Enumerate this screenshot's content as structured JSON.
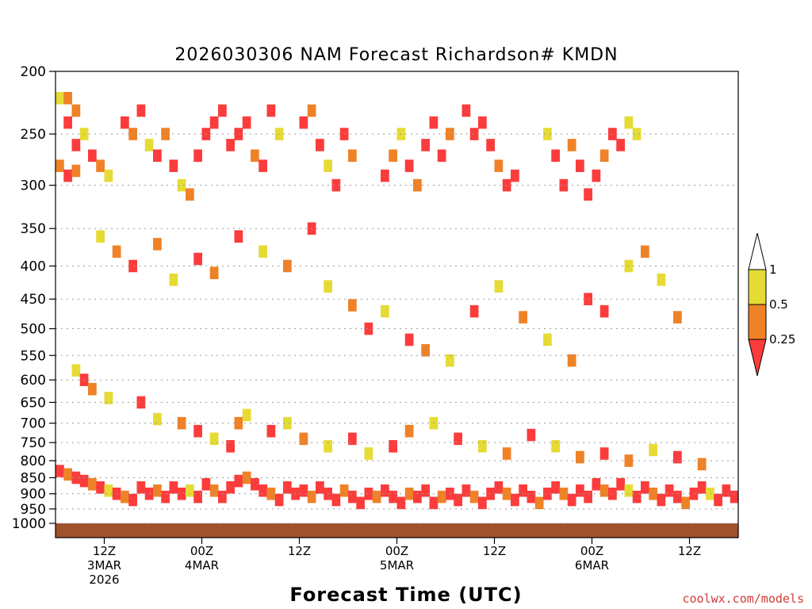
{
  "chart_data": {
    "type": "heatmap",
    "title": "2026030306 NAM Forecast Richardson# KMDN",
    "xlabel": "Forecast Time (UTC)",
    "ylabel": "",
    "y_scale": "log-pressure",
    "ylim": [
      1000,
      200
    ],
    "y_ticks": [
      "200",
      "250",
      "300",
      "350",
      "400",
      "450",
      "500",
      "550",
      "600",
      "650",
      "700",
      "750",
      "800",
      "850",
      "900",
      "950",
      "1000"
    ],
    "x_ticks": [
      {
        "label": "12Z",
        "sub1": "3MAR",
        "sub2": "2026",
        "hour": 6
      },
      {
        "label": "00Z",
        "sub1": "4MAR",
        "sub2": "",
        "hour": 18
      },
      {
        "label": "12Z",
        "sub1": "",
        "sub2": "",
        "hour": 30
      },
      {
        "label": "00Z",
        "sub1": "5MAR",
        "sub2": "",
        "hour": 42
      },
      {
        "label": "12Z",
        "sub1": "",
        "sub2": "",
        "hour": 54
      },
      {
        "label": "00Z",
        "sub1": "6MAR",
        "sub2": "",
        "hour": 66
      },
      {
        "label": "12Z",
        "sub1": "",
        "sub2": "",
        "hour": 78
      }
    ],
    "xlim_hours": [
      0,
      84
    ],
    "legend": {
      "labels": [
        "1",
        "0.5",
        "0.25"
      ],
      "bins": [
        {
          "range": "0.5-1",
          "color": "#e5db34"
        },
        {
          "range": "0.25-0.5",
          "color": "#ef8227"
        },
        {
          "range": "<0.25",
          "color": "#fb3c3c"
        }
      ],
      "above_color": "#ffffff",
      "below_color": "#fb3c3c",
      "placement": "right"
    },
    "ground_color": "#a0522d",
    "cells": [
      [
        0,
        220,
        1
      ],
      [
        1,
        220,
        2
      ],
      [
        1,
        240,
        3
      ],
      [
        2,
        230,
        2
      ],
      [
        2,
        260,
        3
      ],
      [
        3,
        250,
        1
      ],
      [
        4,
        270,
        3
      ],
      [
        5,
        280,
        2
      ],
      [
        6,
        290,
        1
      ],
      [
        0,
        280,
        2
      ],
      [
        1,
        290,
        3
      ],
      [
        2,
        285,
        2
      ],
      [
        8,
        240,
        3
      ],
      [
        9,
        250,
        2
      ],
      [
        10,
        230,
        3
      ],
      [
        11,
        260,
        1
      ],
      [
        12,
        270,
        3
      ],
      [
        13,
        250,
        2
      ],
      [
        14,
        280,
        3
      ],
      [
        15,
        300,
        1
      ],
      [
        16,
        310,
        2
      ],
      [
        17,
        270,
        3
      ],
      [
        18,
        250,
        3
      ],
      [
        19,
        240,
        3
      ],
      [
        20,
        230,
        3
      ],
      [
        21,
        260,
        3
      ],
      [
        22,
        250,
        3
      ],
      [
        23,
        240,
        3
      ],
      [
        24,
        270,
        2
      ],
      [
        25,
        280,
        3
      ],
      [
        26,
        230,
        3
      ],
      [
        27,
        250,
        1
      ],
      [
        30,
        240,
        3
      ],
      [
        31,
        230,
        2
      ],
      [
        32,
        260,
        3
      ],
      [
        33,
        280,
        1
      ],
      [
        34,
        300,
        3
      ],
      [
        35,
        250,
        3
      ],
      [
        36,
        270,
        2
      ],
      [
        40,
        290,
        3
      ],
      [
        41,
        270,
        2
      ],
      [
        42,
        250,
        1
      ],
      [
        43,
        280,
        3
      ],
      [
        44,
        300,
        2
      ],
      [
        45,
        260,
        3
      ],
      [
        46,
        240,
        3
      ],
      [
        47,
        270,
        3
      ],
      [
        48,
        250,
        2
      ],
      [
        50,
        230,
        3
      ],
      [
        51,
        250,
        3
      ],
      [
        52,
        240,
        3
      ],
      [
        53,
        260,
        3
      ],
      [
        54,
        280,
        2
      ],
      [
        55,
        300,
        3
      ],
      [
        56,
        290,
        3
      ],
      [
        60,
        250,
        1
      ],
      [
        61,
        270,
        3
      ],
      [
        62,
        300,
        3
      ],
      [
        63,
        260,
        2
      ],
      [
        64,
        280,
        3
      ],
      [
        65,
        310,
        3
      ],
      [
        66,
        290,
        3
      ],
      [
        67,
        270,
        2
      ],
      [
        68,
        250,
        3
      ],
      [
        69,
        260,
        3
      ],
      [
        70,
        240,
        1
      ],
      [
        71,
        250,
        1
      ],
      [
        5,
        360,
        1
      ],
      [
        7,
        380,
        2
      ],
      [
        9,
        400,
        3
      ],
      [
        12,
        370,
        2
      ],
      [
        14,
        420,
        1
      ],
      [
        17,
        390,
        3
      ],
      [
        19,
        410,
        2
      ],
      [
        22,
        360,
        3
      ],
      [
        25,
        380,
        1
      ],
      [
        28,
        400,
        2
      ],
      [
        31,
        350,
        3
      ],
      [
        33,
        430,
        1
      ],
      [
        36,
        460,
        2
      ],
      [
        38,
        500,
        3
      ],
      [
        40,
        470,
        1
      ],
      [
        43,
        520,
        3
      ],
      [
        45,
        540,
        2
      ],
      [
        48,
        560,
        1
      ],
      [
        51,
        470,
        3
      ],
      [
        54,
        430,
        1
      ],
      [
        57,
        480,
        2
      ],
      [
        60,
        520,
        1
      ],
      [
        63,
        560,
        2
      ],
      [
        65,
        450,
        3
      ],
      [
        67,
        470,
        3
      ],
      [
        70,
        400,
        1
      ],
      [
        72,
        380,
        2
      ],
      [
        74,
        420,
        1
      ],
      [
        76,
        480,
        2
      ],
      [
        2,
        580,
        1
      ],
      [
        3,
        600,
        3
      ],
      [
        4,
        620,
        2
      ],
      [
        6,
        640,
        1
      ],
      [
        10,
        650,
        3
      ],
      [
        12,
        690,
        1
      ],
      [
        15,
        700,
        2
      ],
      [
        17,
        720,
        3
      ],
      [
        19,
        740,
        1
      ],
      [
        21,
        760,
        3
      ],
      [
        22,
        700,
        2
      ],
      [
        23,
        680,
        1
      ],
      [
        26,
        720,
        3
      ],
      [
        28,
        700,
        1
      ],
      [
        30,
        740,
        2
      ],
      [
        33,
        760,
        1
      ],
      [
        36,
        740,
        3
      ],
      [
        38,
        780,
        1
      ],
      [
        41,
        760,
        3
      ],
      [
        43,
        720,
        2
      ],
      [
        46,
        700,
        1
      ],
      [
        49,
        740,
        3
      ],
      [
        52,
        760,
        1
      ],
      [
        55,
        780,
        2
      ],
      [
        58,
        730,
        3
      ],
      [
        61,
        760,
        1
      ],
      [
        64,
        790,
        2
      ],
      [
        67,
        780,
        3
      ],
      [
        70,
        800,
        2
      ],
      [
        73,
        770,
        1
      ],
      [
        76,
        790,
        3
      ],
      [
        79,
        810,
        2
      ],
      [
        0,
        830,
        3
      ],
      [
        1,
        840,
        2
      ],
      [
        2,
        850,
        3
      ],
      [
        3,
        860,
        3
      ],
      [
        4,
        870,
        2
      ],
      [
        5,
        880,
        3
      ],
      [
        6,
        890,
        1
      ],
      [
        7,
        900,
        3
      ],
      [
        8,
        910,
        2
      ],
      [
        9,
        920,
        3
      ],
      [
        10,
        880,
        3
      ],
      [
        11,
        900,
        3
      ],
      [
        12,
        890,
        2
      ],
      [
        13,
        910,
        3
      ],
      [
        14,
        880,
        3
      ],
      [
        15,
        900,
        3
      ],
      [
        16,
        890,
        1
      ],
      [
        17,
        910,
        3
      ],
      [
        18,
        870,
        3
      ],
      [
        19,
        890,
        2
      ],
      [
        20,
        910,
        3
      ],
      [
        21,
        880,
        3
      ],
      [
        22,
        860,
        3
      ],
      [
        23,
        850,
        2
      ],
      [
        24,
        870,
        3
      ],
      [
        25,
        890,
        3
      ],
      [
        26,
        900,
        2
      ],
      [
        27,
        920,
        3
      ],
      [
        28,
        880,
        3
      ],
      [
        29,
        900,
        3
      ],
      [
        30,
        890,
        3
      ],
      [
        31,
        910,
        2
      ],
      [
        32,
        880,
        3
      ],
      [
        33,
        900,
        3
      ],
      [
        34,
        920,
        3
      ],
      [
        35,
        890,
        2
      ],
      [
        36,
        910,
        3
      ],
      [
        37,
        930,
        3
      ],
      [
        38,
        900,
        3
      ],
      [
        39,
        910,
        2
      ],
      [
        40,
        890,
        3
      ],
      [
        41,
        910,
        3
      ],
      [
        42,
        930,
        3
      ],
      [
        43,
        900,
        2
      ],
      [
        44,
        910,
        3
      ],
      [
        45,
        890,
        3
      ],
      [
        46,
        930,
        3
      ],
      [
        47,
        910,
        2
      ],
      [
        48,
        900,
        3
      ],
      [
        49,
        920,
        3
      ],
      [
        50,
        890,
        3
      ],
      [
        51,
        910,
        2
      ],
      [
        52,
        930,
        3
      ],
      [
        53,
        900,
        3
      ],
      [
        54,
        880,
        3
      ],
      [
        55,
        900,
        2
      ],
      [
        56,
        920,
        3
      ],
      [
        57,
        890,
        3
      ],
      [
        58,
        910,
        3
      ],
      [
        59,
        930,
        2
      ],
      [
        60,
        900,
        3
      ],
      [
        61,
        880,
        3
      ],
      [
        62,
        900,
        2
      ],
      [
        63,
        920,
        3
      ],
      [
        64,
        890,
        3
      ],
      [
        65,
        910,
        3
      ],
      [
        66,
        870,
        3
      ],
      [
        67,
        890,
        2
      ],
      [
        68,
        900,
        3
      ],
      [
        69,
        870,
        3
      ],
      [
        70,
        890,
        1
      ],
      [
        71,
        910,
        3
      ],
      [
        72,
        880,
        3
      ],
      [
        73,
        900,
        2
      ],
      [
        74,
        920,
        3
      ],
      [
        75,
        890,
        3
      ],
      [
        76,
        910,
        3
      ],
      [
        77,
        930,
        2
      ],
      [
        78,
        900,
        3
      ],
      [
        79,
        880,
        3
      ],
      [
        80,
        900,
        1
      ],
      [
        81,
        920,
        3
      ],
      [
        82,
        890,
        3
      ],
      [
        83,
        910,
        3
      ]
    ]
  },
  "credit": "coolwx.com/models"
}
